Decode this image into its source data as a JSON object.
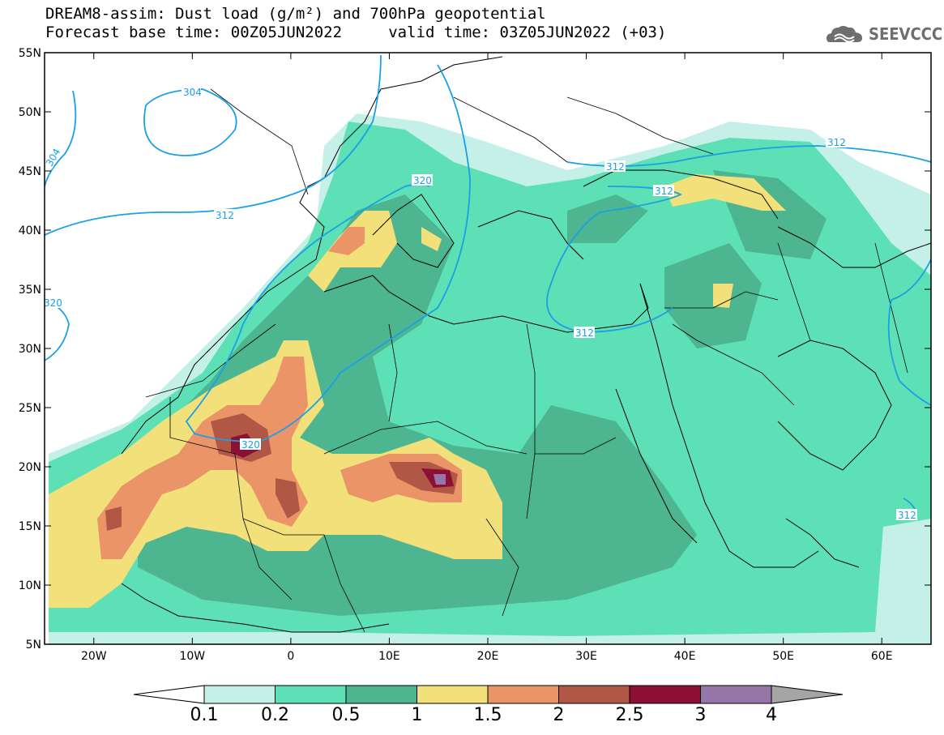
{
  "header": {
    "title_line1": "DREAM8-assim: Dust load (g/m²) and 700hPa geopotential",
    "title_line2": "Forecast base time: 00Z05JUN2022     valid time: 03Z05JUN2022 (+03)",
    "logo_text": "SEEVCCC"
  },
  "map": {
    "lat_labels": [
      "55N",
      "50N",
      "45N",
      "40N",
      "35N",
      "30N",
      "25N",
      "20N",
      "15N",
      "10N",
      "5N"
    ],
    "lon_labels": [
      "20W",
      "10W",
      "0",
      "10E",
      "20E",
      "30E",
      "40E",
      "50E",
      "60E"
    ],
    "lat_range": [
      5,
      55
    ],
    "lon_range": [
      -25,
      65
    ],
    "contour_labels": [
      "304",
      "304",
      "312",
      "312",
      "312",
      "312",
      "312",
      "312",
      "320",
      "320",
      "320"
    ]
  },
  "colorbar": {
    "labels": [
      "0.1",
      "0.2",
      "0.5",
      "1",
      "1.5",
      "2",
      "2.5",
      "3",
      "4"
    ],
    "colors": [
      "#c4f0e8",
      "#5ee0b6",
      "#4db58f",
      "#f2e07a",
      "#ea9468",
      "#b15745",
      "#8c1034",
      "#9676a8"
    ],
    "extend_high_color": "#a5a5a5",
    "extend_low_color": "#ffffff"
  },
  "contour_color": "#1aa0e6"
}
